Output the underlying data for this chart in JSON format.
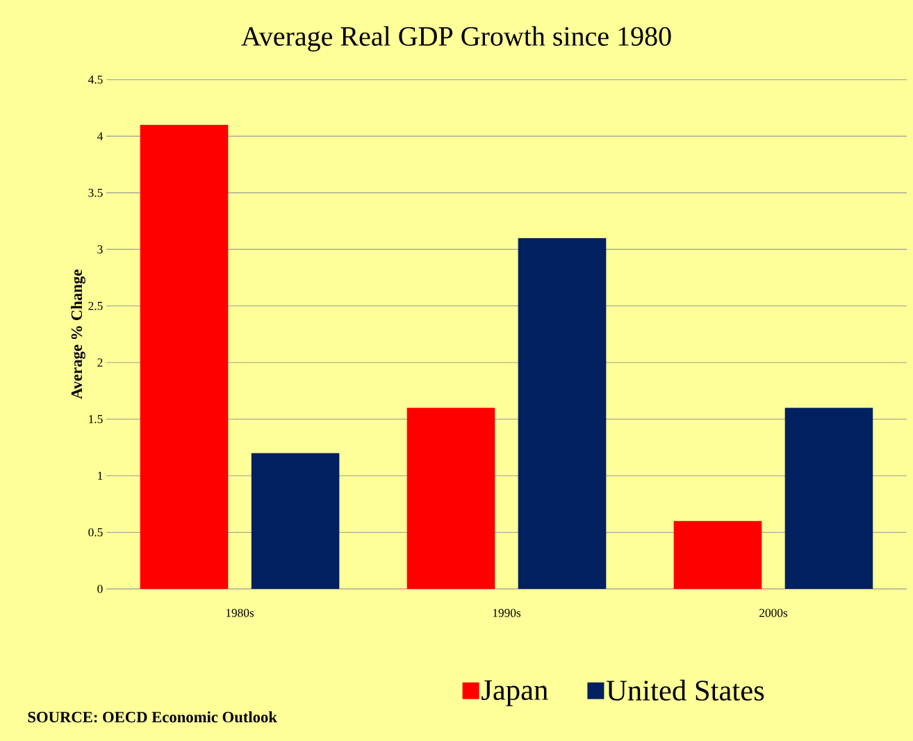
{
  "chart_data": {
    "type": "bar",
    "title": "Average Real GDP Growth since 1980",
    "ylabel": "Average % Change",
    "categories": [
      "1980s",
      "1990s",
      "2000s"
    ],
    "series": [
      {
        "name": "Japan",
        "color": "#ff0000",
        "values": [
          4.1,
          1.6,
          0.6
        ]
      },
      {
        "name": "United States",
        "color": "#002060",
        "values": [
          1.2,
          3.1,
          1.6
        ]
      }
    ],
    "ylim": [
      0,
      4.5
    ],
    "yticks": [
      0,
      0.5,
      1,
      1.5,
      2,
      2.5,
      3,
      3.5,
      4,
      4.5
    ],
    "grid": "y",
    "legend": "bottom",
    "annotations": [
      "SOURCE: OECD Economic Outlook"
    ]
  }
}
